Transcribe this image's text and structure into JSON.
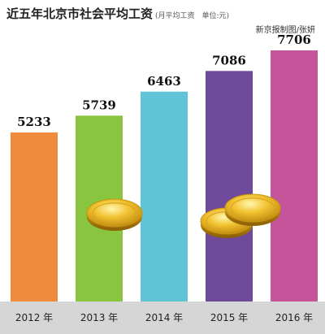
{
  "header": {
    "title": "近五年北京市社会平均工资",
    "subtitle": "(月平均工资　单位:元)",
    "credit": "新京报制图/张妍"
  },
  "chart_data": {
    "type": "bar",
    "title": "近五年北京市社会平均工资",
    "subtitle": "(月平均工资　单位:元)",
    "categories": [
      "2012 年",
      "2013 年",
      "2014 年",
      "2015 年",
      "2016 年"
    ],
    "values": [
      5233,
      5739,
      6463,
      7086,
      7706
    ],
    "colors": [
      "#f08a3c",
      "#8ac53f",
      "#5ec4d6",
      "#6f4a9a",
      "#c5549a"
    ],
    "axis_band_color": "#d6d6d6",
    "decoration": "gold-coins-icon",
    "grid": false,
    "legend": "none"
  }
}
